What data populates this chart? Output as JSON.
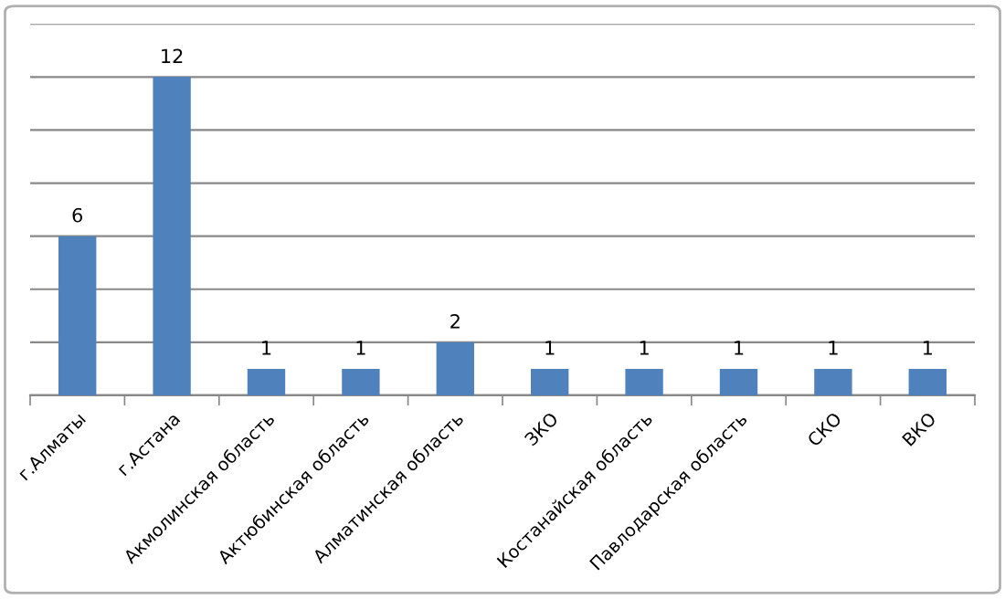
{
  "chart_data": {
    "type": "bar",
    "categories": [
      "г.Алматы",
      "г.Астана",
      "Акмолинская область",
      "Актюбинская область",
      "Алматинская область",
      "ЗКО",
      "Костанайская область",
      "Павлодарская область",
      "СКО",
      "ВКО"
    ],
    "values": [
      6,
      12,
      1,
      1,
      2,
      1,
      1,
      1,
      1,
      1
    ],
    "color": "#4f81bd",
    "ylim": [
      0,
      14
    ],
    "yticks": [
      {
        "value": 0,
        "label": null
      },
      {
        "value": 2,
        "label": null
      },
      {
        "value": 4,
        "label": null
      },
      {
        "value": 6,
        "label": null
      },
      {
        "value": 8,
        "label": null
      },
      {
        "value": 10,
        "label": null
      },
      {
        "value": 12,
        "label": null
      },
      {
        "value": 14,
        "label": null
      }
    ],
    "grid": "y",
    "tick_labels": "x",
    "data_labels": true,
    "legend": false
  }
}
